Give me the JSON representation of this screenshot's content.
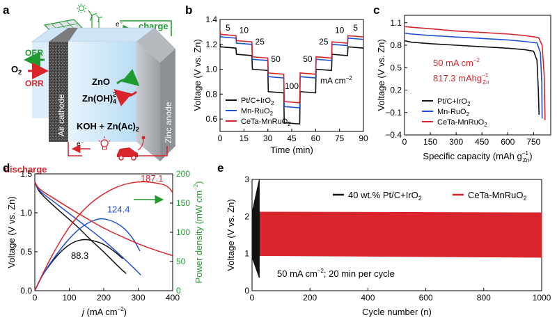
{
  "colors": {
    "black": "#111111",
    "blue": "#1f4fd6",
    "red": "#d8252b",
    "green": "#1f9a2f",
    "axis": "#000000"
  },
  "panel_a": {
    "label": "a",
    "charge": "charge",
    "discharge": "discharge",
    "electron_top": "e⁻",
    "electron_bottom": "e⁻",
    "oer": "OER",
    "orr": "ORR",
    "o2": "O",
    "o2_sub": "2",
    "zno": "ZnO",
    "zn_oh": "Zn(OH)",
    "zn_oh_sub": "4",
    "zn_oh_sup": "2−",
    "electrolyte_main": "KOH + Zn(Ac)",
    "electrolyte_sub": "2",
    "air_cathode": "Air cathode",
    "zinc_anode": "Zinc anode",
    "icons": [
      "solar-panel-icon",
      "wind-turbine-icon",
      "sun-icon",
      "light-bulb-icon",
      "electric-car-icon"
    ]
  },
  "chart_data": [
    {
      "id": "b",
      "type": "line",
      "label": "b",
      "xlabel": "Time (min)",
      "ylabel": "Voltage (V vs. Zn)",
      "xlim": [
        0,
        90
      ],
      "ylim": [
        0.5,
        1.4
      ],
      "xticks": [
        0,
        15,
        30,
        45,
        60,
        75,
        90
      ],
      "yticks": [
        0.6,
        0.8,
        1.0,
        1.2,
        1.4
      ],
      "ytick_labels": [
        "0.6",
        "0.8",
        "1.0",
        "1.2",
        "1.4"
      ],
      "unit_note": "mA cm",
      "unit_note_sup": "−2",
      "rate_labels": [
        {
          "text": "5",
          "x": 5,
          "y": 1.31
        },
        {
          "text": "10",
          "x": 15,
          "y": 1.29
        },
        {
          "text": "25",
          "x": 25,
          "y": 1.2
        },
        {
          "text": "50",
          "x": 35,
          "y": 1.06
        },
        {
          "text": "100",
          "x": 45,
          "y": 0.84
        },
        {
          "text": "50",
          "x": 55,
          "y": 1.06
        },
        {
          "text": "25",
          "x": 65,
          "y": 1.2
        },
        {
          "text": "10",
          "x": 75,
          "y": 1.29
        },
        {
          "text": "5",
          "x": 85,
          "y": 1.31
        }
      ],
      "segments": [
        0,
        10,
        20,
        30,
        40,
        50,
        60,
        70,
        80,
        90
      ],
      "series": [
        {
          "name": "Pt/C+IrO",
          "name_sub": "2",
          "color": "black",
          "start": 1.2,
          "levels": [
            1.18,
            1.12,
            1.0,
            0.82,
            0.57,
            0.82,
            1.0,
            1.12,
            1.18
          ]
        },
        {
          "name": "Mn-RuO",
          "name_sub": "2",
          "color": "blue",
          "start": 1.29,
          "levels": [
            1.26,
            1.21,
            1.08,
            0.94,
            0.7,
            0.94,
            1.08,
            1.2,
            1.25
          ]
        },
        {
          "name": "CeTa-MnRuO",
          "name_sub": "2",
          "color": "red",
          "start": 1.31,
          "levels": [
            1.28,
            1.23,
            1.1,
            0.97,
            0.74,
            0.97,
            1.1,
            1.22,
            1.27
          ]
        }
      ]
    },
    {
      "id": "c",
      "type": "line",
      "label": "c",
      "xlabel": "Specific capacity (mAh g",
      "xlabel_sub": "Zn",
      "xlabel_sup": "−1",
      "xlabel_end": ")",
      "ylabel": "Voltage (V vs. Zn)",
      "xlim": [
        0,
        850
      ],
      "ylim": [
        -0.4,
        1.2
      ],
      "xticks": [
        0,
        150,
        300,
        450,
        600,
        750
      ],
      "yticks": [
        -0.4,
        -0.1,
        0.2,
        0.5,
        0.8,
        1.1
      ],
      "ytick_labels": [
        "−0.4",
        "−0.1",
        "0.2",
        "0.5",
        "0.8",
        "1.1"
      ],
      "annotation_1": "50 mA cm",
      "annotation_1_sup": "−2",
      "annotation_2": "817.3 mAhg",
      "annotation_2_sub": "Zn",
      "annotation_2_sup": "−1",
      "series": [
        {
          "name": "Pt/C+IrO",
          "name_sub": "2",
          "color": "black",
          "points": [
            [
              0,
              0.86
            ],
            [
              40,
              0.84
            ],
            [
              150,
              0.82
            ],
            [
              300,
              0.8
            ],
            [
              450,
              0.78
            ],
            [
              600,
              0.76
            ],
            [
              700,
              0.74
            ],
            [
              750,
              0.72
            ],
            [
              770,
              0.6
            ],
            [
              778,
              0.2
            ],
            [
              782,
              -0.13
            ]
          ]
        },
        {
          "name": "Mn-RuO",
          "name_sub": "2",
          "color": "blue",
          "points": [
            [
              0,
              0.96
            ],
            [
              40,
              0.95
            ],
            [
              150,
              0.93
            ],
            [
              300,
              0.91
            ],
            [
              450,
              0.89
            ],
            [
              600,
              0.87
            ],
            [
              700,
              0.85
            ],
            [
              770,
              0.83
            ],
            [
              790,
              0.7
            ],
            [
              798,
              0.3
            ],
            [
              800,
              -0.18
            ]
          ]
        },
        {
          "name": "CeTa-MnRuO",
          "name_sub": "2",
          "color": "red",
          "points": [
            [
              0,
              1.05
            ],
            [
              40,
              1.04
            ],
            [
              150,
              1.02
            ],
            [
              300,
              0.99
            ],
            [
              450,
              0.97
            ],
            [
              600,
              0.95
            ],
            [
              700,
              0.93
            ],
            [
              780,
              0.9
            ],
            [
              800,
              0.8
            ],
            [
              812,
              0.4
            ],
            [
              817,
              -0.2
            ]
          ]
        }
      ]
    },
    {
      "id": "d",
      "type": "line",
      "label": "d",
      "xlabel": "j",
      "xlabel_rest": " (mA cm",
      "xlabel_sup": "−2",
      "xlabel_end": ")",
      "ylabel": "Voltage (V vs. Zn)",
      "y2label": "Power density (mW cm",
      "y2label_sup": "−2",
      "y2label_end": ")",
      "xlim": [
        0,
        400
      ],
      "ylim": [
        0,
        1.5
      ],
      "y2lim": [
        0,
        200
      ],
      "xticks": [
        0,
        100,
        200,
        300,
        400
      ],
      "yticks": [
        0.0,
        0.5,
        1.0,
        1.5
      ],
      "ytick_labels": [
        "0.0",
        "0.5",
        "1.0",
        "1.5"
      ],
      "y2ticks": [
        0,
        50,
        100,
        150,
        200
      ],
      "peak_labels": [
        {
          "text": "88.3",
          "x": 105,
          "y2": 55,
          "color": "black"
        },
        {
          "text": "124.4",
          "x": 210,
          "y2": 134,
          "color": "blue"
        },
        {
          "text": "187.1",
          "x": 307,
          "y2": 187,
          "color": "red"
        }
      ],
      "series": [
        {
          "name": "Pt/C+IrO₂ voltage",
          "axis": "left",
          "color": "black",
          "points": [
            [
              0,
              1.4
            ],
            [
              10,
              1.28
            ],
            [
              40,
              1.15
            ],
            [
              80,
              0.99
            ],
            [
              120,
              0.84
            ],
            [
              160,
              0.66
            ],
            [
              200,
              0.5
            ],
            [
              240,
              0.32
            ],
            [
              265,
              0.22
            ]
          ]
        },
        {
          "name": "Pt/C+IrO₂ power",
          "axis": "right",
          "color": "black",
          "points": [
            [
              0,
              0
            ],
            [
              20,
              25
            ],
            [
              50,
              50
            ],
            [
              80,
              70
            ],
            [
              110,
              83
            ],
            [
              140,
              88.3
            ],
            [
              170,
              86
            ],
            [
              200,
              80
            ],
            [
              230,
              68
            ],
            [
              255,
              55
            ]
          ]
        },
        {
          "name": "Mn-RuO₂ voltage",
          "axis": "left",
          "color": "blue",
          "points": [
            [
              0,
              1.4
            ],
            [
              10,
              1.29
            ],
            [
              50,
              1.16
            ],
            [
              100,
              0.99
            ],
            [
              150,
              0.82
            ],
            [
              200,
              0.65
            ],
            [
              250,
              0.45
            ],
            [
              290,
              0.28
            ],
            [
              308,
              0.2
            ]
          ]
        },
        {
          "name": "Mn-RuO₂ power",
          "axis": "right",
          "color": "blue",
          "points": [
            [
              0,
              0
            ],
            [
              25,
              30
            ],
            [
              60,
              60
            ],
            [
              100,
              90
            ],
            [
              140,
              112
            ],
            [
              185,
              124.4
            ],
            [
              220,
              121
            ],
            [
              255,
              110
            ],
            [
              285,
              90
            ],
            [
              305,
              68
            ]
          ]
        },
        {
          "name": "CeTa-MnRuO₂ voltage",
          "axis": "left",
          "color": "red",
          "points": [
            [
              0,
              1.4
            ],
            [
              10,
              1.31
            ],
            [
              50,
              1.2
            ],
            [
              100,
              1.06
            ],
            [
              150,
              0.93
            ],
            [
              200,
              0.8
            ],
            [
              250,
              0.7
            ],
            [
              300,
              0.6
            ],
            [
              350,
              0.52
            ],
            [
              400,
              0.45
            ]
          ]
        },
        {
          "name": "CeTa-MnRuO₂ power",
          "axis": "right",
          "color": "red",
          "points": [
            [
              0,
              0
            ],
            [
              30,
              38
            ],
            [
              70,
              82
            ],
            [
              110,
              118
            ],
            [
              160,
              150
            ],
            [
              210,
              170
            ],
            [
              260,
              183
            ],
            [
              310,
              187.1
            ],
            [
              350,
              185
            ],
            [
              385,
              180
            ],
            [
              400,
              168
            ]
          ]
        }
      ]
    },
    {
      "id": "e",
      "type": "line",
      "label": "e",
      "xlabel": "Cycle number (n)",
      "ylabel": "Voltage (V vs. Zn)",
      "xlim": [
        0,
        1000
      ],
      "ylim": [
        0,
        3
      ],
      "xticks": [
        0,
        200,
        400,
        600,
        800,
        1000
      ],
      "yticks": [
        0,
        1,
        2,
        3
      ],
      "annotation": "50 mA cm",
      "annotation_sup": "−2",
      "annotation_end": "; 20 min per cycle",
      "series": [
        {
          "name": "40 wt.% Pt/C+IrO",
          "name_sub": "2",
          "color": "black",
          "cycles": [
            0,
            25
          ],
          "charge": [
            2.1,
            3.0
          ],
          "discharge": [
            0.9,
            0.35
          ]
        },
        {
          "name": "CeTa-MnRuO",
          "name_sub": "2",
          "color": "red",
          "cycles": [
            0,
            1000
          ],
          "charge": [
            2.12,
            2.1
          ],
          "discharge": [
            0.95,
            0.9
          ]
        }
      ]
    }
  ]
}
